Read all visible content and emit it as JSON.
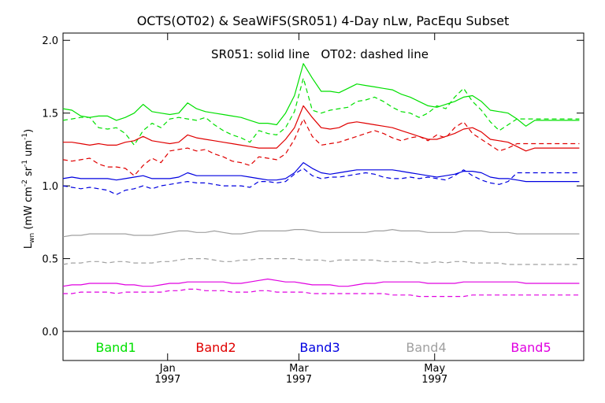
{
  "chart_data": {
    "type": "line",
    "title": "OCTS(OT02) & SeaWiFS(SR051) 4-Day nLw, PacEqu Subset",
    "annotation": "SR051: solid line   OT02: dashed line",
    "ylabel": "L_wn (mW cm^-2 sr^-1 um^-1)",
    "ylabel_parts": {
      "main": "L",
      "sub": "wn",
      "open": " (mW cm",
      "sup1": "-2",
      "mid1": " sr",
      "sup2": "-1",
      "mid2": " um",
      "sup3": "-1",
      "close": ")"
    },
    "ylim": [
      -0.2,
      2.05
    ],
    "yticks": [
      "0.0",
      "0.5",
      "1.0",
      "1.5",
      "2.0"
    ],
    "yticks_values": [
      0.0,
      0.5,
      1.0,
      1.5,
      2.0
    ],
    "x_ticks": [
      {
        "month": "Jan",
        "year": "1997",
        "day": 32
      },
      {
        "month": "Mar",
        "year": "1997",
        "day": 91
      },
      {
        "month": "May",
        "year": "1997",
        "day": 152
      }
    ],
    "xlim": [
      -15,
      219
    ],
    "x": [
      -15,
      -11,
      -7,
      -3,
      1,
      5,
      9,
      13,
      17,
      21,
      25,
      29,
      33,
      37,
      41,
      45,
      49,
      53,
      57,
      61,
      65,
      69,
      73,
      77,
      81,
      85,
      89,
      93,
      97,
      101,
      105,
      109,
      113,
      117,
      121,
      125,
      129,
      133,
      137,
      141,
      145,
      149,
      153,
      157,
      161,
      165,
      169,
      173,
      177,
      181,
      185,
      189,
      193,
      197,
      201,
      205,
      209,
      213,
      217
    ],
    "series": [
      {
        "name": "Band1",
        "color": "#00e000",
        "style": "solid",
        "values": [
          1.53,
          1.52,
          1.48,
          1.47,
          1.48,
          1.48,
          1.45,
          1.47,
          1.5,
          1.56,
          1.51,
          1.5,
          1.49,
          1.5,
          1.57,
          1.53,
          1.51,
          1.5,
          1.49,
          1.48,
          1.47,
          1.45,
          1.43,
          1.43,
          1.42,
          1.5,
          1.62,
          1.84,
          1.74,
          1.65,
          1.65,
          1.64,
          1.67,
          1.7,
          1.69,
          1.68,
          1.67,
          1.66,
          1.63,
          1.61,
          1.58,
          1.55,
          1.54,
          1.56,
          1.58,
          1.61,
          1.62,
          1.58,
          1.52,
          1.51,
          1.5,
          1.46,
          1.41,
          1.45,
          1.45,
          1.45,
          1.45,
          1.45,
          1.45
        ]
      },
      {
        "name": "Band1",
        "color": "#00e000",
        "style": "dashed",
        "values": [
          1.45,
          1.46,
          1.47,
          1.47,
          1.4,
          1.39,
          1.4,
          1.36,
          1.28,
          1.38,
          1.43,
          1.4,
          1.46,
          1.47,
          1.46,
          1.45,
          1.47,
          1.42,
          1.38,
          1.35,
          1.33,
          1.3,
          1.38,
          1.36,
          1.35,
          1.4,
          1.51,
          1.74,
          1.52,
          1.5,
          1.52,
          1.53,
          1.54,
          1.58,
          1.59,
          1.61,
          1.58,
          1.54,
          1.51,
          1.5,
          1.47,
          1.5,
          1.55,
          1.53,
          1.61,
          1.67,
          1.58,
          1.52,
          1.44,
          1.38,
          1.42,
          1.46,
          1.46,
          1.46,
          1.46,
          1.46,
          1.46,
          1.46,
          1.46
        ]
      },
      {
        "name": "Band2",
        "color": "#e00000",
        "style": "solid",
        "values": [
          1.3,
          1.3,
          1.29,
          1.28,
          1.29,
          1.28,
          1.28,
          1.3,
          1.31,
          1.34,
          1.31,
          1.3,
          1.29,
          1.3,
          1.35,
          1.33,
          1.32,
          1.31,
          1.3,
          1.29,
          1.28,
          1.27,
          1.26,
          1.26,
          1.26,
          1.32,
          1.4,
          1.55,
          1.47,
          1.4,
          1.39,
          1.4,
          1.43,
          1.44,
          1.43,
          1.42,
          1.41,
          1.4,
          1.38,
          1.36,
          1.34,
          1.32,
          1.32,
          1.34,
          1.36,
          1.39,
          1.4,
          1.37,
          1.32,
          1.31,
          1.3,
          1.27,
          1.24,
          1.26,
          1.26,
          1.26,
          1.26,
          1.26,
          1.26
        ]
      },
      {
        "name": "Band2",
        "color": "#e00000",
        "style": "dashed",
        "values": [
          1.18,
          1.17,
          1.18,
          1.19,
          1.15,
          1.13,
          1.13,
          1.12,
          1.07,
          1.14,
          1.19,
          1.16,
          1.24,
          1.25,
          1.26,
          1.24,
          1.25,
          1.22,
          1.2,
          1.17,
          1.16,
          1.14,
          1.2,
          1.19,
          1.18,
          1.22,
          1.32,
          1.46,
          1.34,
          1.28,
          1.29,
          1.3,
          1.32,
          1.34,
          1.36,
          1.38,
          1.36,
          1.33,
          1.31,
          1.33,
          1.34,
          1.31,
          1.35,
          1.33,
          1.4,
          1.44,
          1.36,
          1.32,
          1.28,
          1.24,
          1.26,
          1.29,
          1.29,
          1.29,
          1.29,
          1.29,
          1.29,
          1.29,
          1.29
        ]
      },
      {
        "name": "Band3",
        "color": "#0000e0",
        "style": "solid",
        "values": [
          1.05,
          1.06,
          1.05,
          1.05,
          1.05,
          1.05,
          1.04,
          1.05,
          1.06,
          1.07,
          1.05,
          1.05,
          1.05,
          1.06,
          1.09,
          1.07,
          1.07,
          1.07,
          1.07,
          1.07,
          1.07,
          1.06,
          1.05,
          1.04,
          1.04,
          1.05,
          1.09,
          1.16,
          1.12,
          1.09,
          1.08,
          1.09,
          1.1,
          1.11,
          1.11,
          1.11,
          1.11,
          1.11,
          1.1,
          1.09,
          1.08,
          1.07,
          1.06,
          1.07,
          1.08,
          1.1,
          1.1,
          1.09,
          1.06,
          1.05,
          1.05,
          1.04,
          1.03,
          1.03,
          1.03,
          1.03,
          1.03,
          1.03,
          1.03
        ]
      },
      {
        "name": "Band3",
        "color": "#0000e0",
        "style": "dashed",
        "values": [
          1.0,
          0.99,
          0.98,
          0.99,
          0.98,
          0.97,
          0.94,
          0.97,
          0.98,
          1.0,
          0.98,
          1.0,
          1.01,
          1.02,
          1.03,
          1.02,
          1.02,
          1.01,
          1.0,
          1.0,
          1.0,
          0.99,
          1.03,
          1.03,
          1.02,
          1.03,
          1.08,
          1.12,
          1.07,
          1.05,
          1.06,
          1.06,
          1.07,
          1.08,
          1.09,
          1.08,
          1.06,
          1.05,
          1.05,
          1.06,
          1.05,
          1.06,
          1.05,
          1.04,
          1.07,
          1.11,
          1.07,
          1.04,
          1.02,
          1.01,
          1.03,
          1.09,
          1.09,
          1.09,
          1.09,
          1.09,
          1.09,
          1.09,
          1.09
        ]
      },
      {
        "name": "Band4",
        "color": "#a0a0a0",
        "style": "solid",
        "values": [
          0.65,
          0.66,
          0.66,
          0.67,
          0.67,
          0.67,
          0.67,
          0.67,
          0.66,
          0.66,
          0.66,
          0.67,
          0.68,
          0.69,
          0.69,
          0.68,
          0.68,
          0.69,
          0.68,
          0.67,
          0.67,
          0.68,
          0.69,
          0.69,
          0.69,
          0.69,
          0.7,
          0.7,
          0.69,
          0.68,
          0.68,
          0.68,
          0.68,
          0.68,
          0.68,
          0.69,
          0.69,
          0.7,
          0.69,
          0.69,
          0.69,
          0.68,
          0.68,
          0.68,
          0.68,
          0.69,
          0.69,
          0.69,
          0.68,
          0.68,
          0.68,
          0.67,
          0.67,
          0.67,
          0.67,
          0.67,
          0.67,
          0.67,
          0.67
        ]
      },
      {
        "name": "Band4",
        "color": "#a0a0a0",
        "style": "dashed",
        "values": [
          0.46,
          0.47,
          0.47,
          0.48,
          0.48,
          0.47,
          0.48,
          0.48,
          0.47,
          0.47,
          0.47,
          0.48,
          0.48,
          0.49,
          0.5,
          0.5,
          0.5,
          0.49,
          0.48,
          0.48,
          0.49,
          0.49,
          0.5,
          0.5,
          0.5,
          0.5,
          0.5,
          0.49,
          0.49,
          0.49,
          0.48,
          0.49,
          0.49,
          0.49,
          0.49,
          0.49,
          0.48,
          0.48,
          0.48,
          0.48,
          0.47,
          0.47,
          0.48,
          0.47,
          0.48,
          0.48,
          0.47,
          0.47,
          0.47,
          0.47,
          0.46,
          0.46,
          0.46,
          0.46,
          0.46,
          0.46,
          0.46,
          0.46,
          0.46
        ]
      },
      {
        "name": "Band5",
        "color": "#e000e0",
        "style": "solid",
        "values": [
          0.31,
          0.32,
          0.32,
          0.33,
          0.33,
          0.33,
          0.33,
          0.32,
          0.32,
          0.31,
          0.31,
          0.32,
          0.33,
          0.33,
          0.34,
          0.34,
          0.34,
          0.34,
          0.34,
          0.33,
          0.33,
          0.34,
          0.35,
          0.36,
          0.35,
          0.34,
          0.34,
          0.33,
          0.32,
          0.32,
          0.32,
          0.31,
          0.31,
          0.32,
          0.33,
          0.33,
          0.34,
          0.34,
          0.34,
          0.34,
          0.34,
          0.33,
          0.33,
          0.33,
          0.33,
          0.34,
          0.34,
          0.34,
          0.34,
          0.34,
          0.34,
          0.34,
          0.33,
          0.33,
          0.33,
          0.33,
          0.33,
          0.33,
          0.33
        ]
      },
      {
        "name": "Band5",
        "color": "#e000e0",
        "style": "dashed",
        "values": [
          0.26,
          0.26,
          0.27,
          0.27,
          0.27,
          0.27,
          0.26,
          0.27,
          0.27,
          0.27,
          0.27,
          0.27,
          0.28,
          0.28,
          0.29,
          0.29,
          0.28,
          0.28,
          0.28,
          0.27,
          0.27,
          0.27,
          0.28,
          0.28,
          0.27,
          0.27,
          0.27,
          0.27,
          0.26,
          0.26,
          0.26,
          0.26,
          0.26,
          0.26,
          0.26,
          0.26,
          0.26,
          0.25,
          0.25,
          0.25,
          0.24,
          0.24,
          0.24,
          0.24,
          0.24,
          0.24,
          0.25,
          0.25,
          0.25,
          0.25,
          0.25,
          0.25,
          0.25,
          0.25,
          0.25,
          0.25,
          0.25,
          0.25,
          0.25
        ]
      }
    ],
    "legend": [
      {
        "label": "Band1",
        "color": "#00e000"
      },
      {
        "label": "Band2",
        "color": "#e00000"
      },
      {
        "label": "Band3",
        "color": "#0000e0"
      },
      {
        "label": "Band4",
        "color": "#a0a0a0"
      },
      {
        "label": "Band5",
        "color": "#e000e0"
      }
    ],
    "legend_placement": "bottom, inside plot below zero line",
    "grid": false
  }
}
